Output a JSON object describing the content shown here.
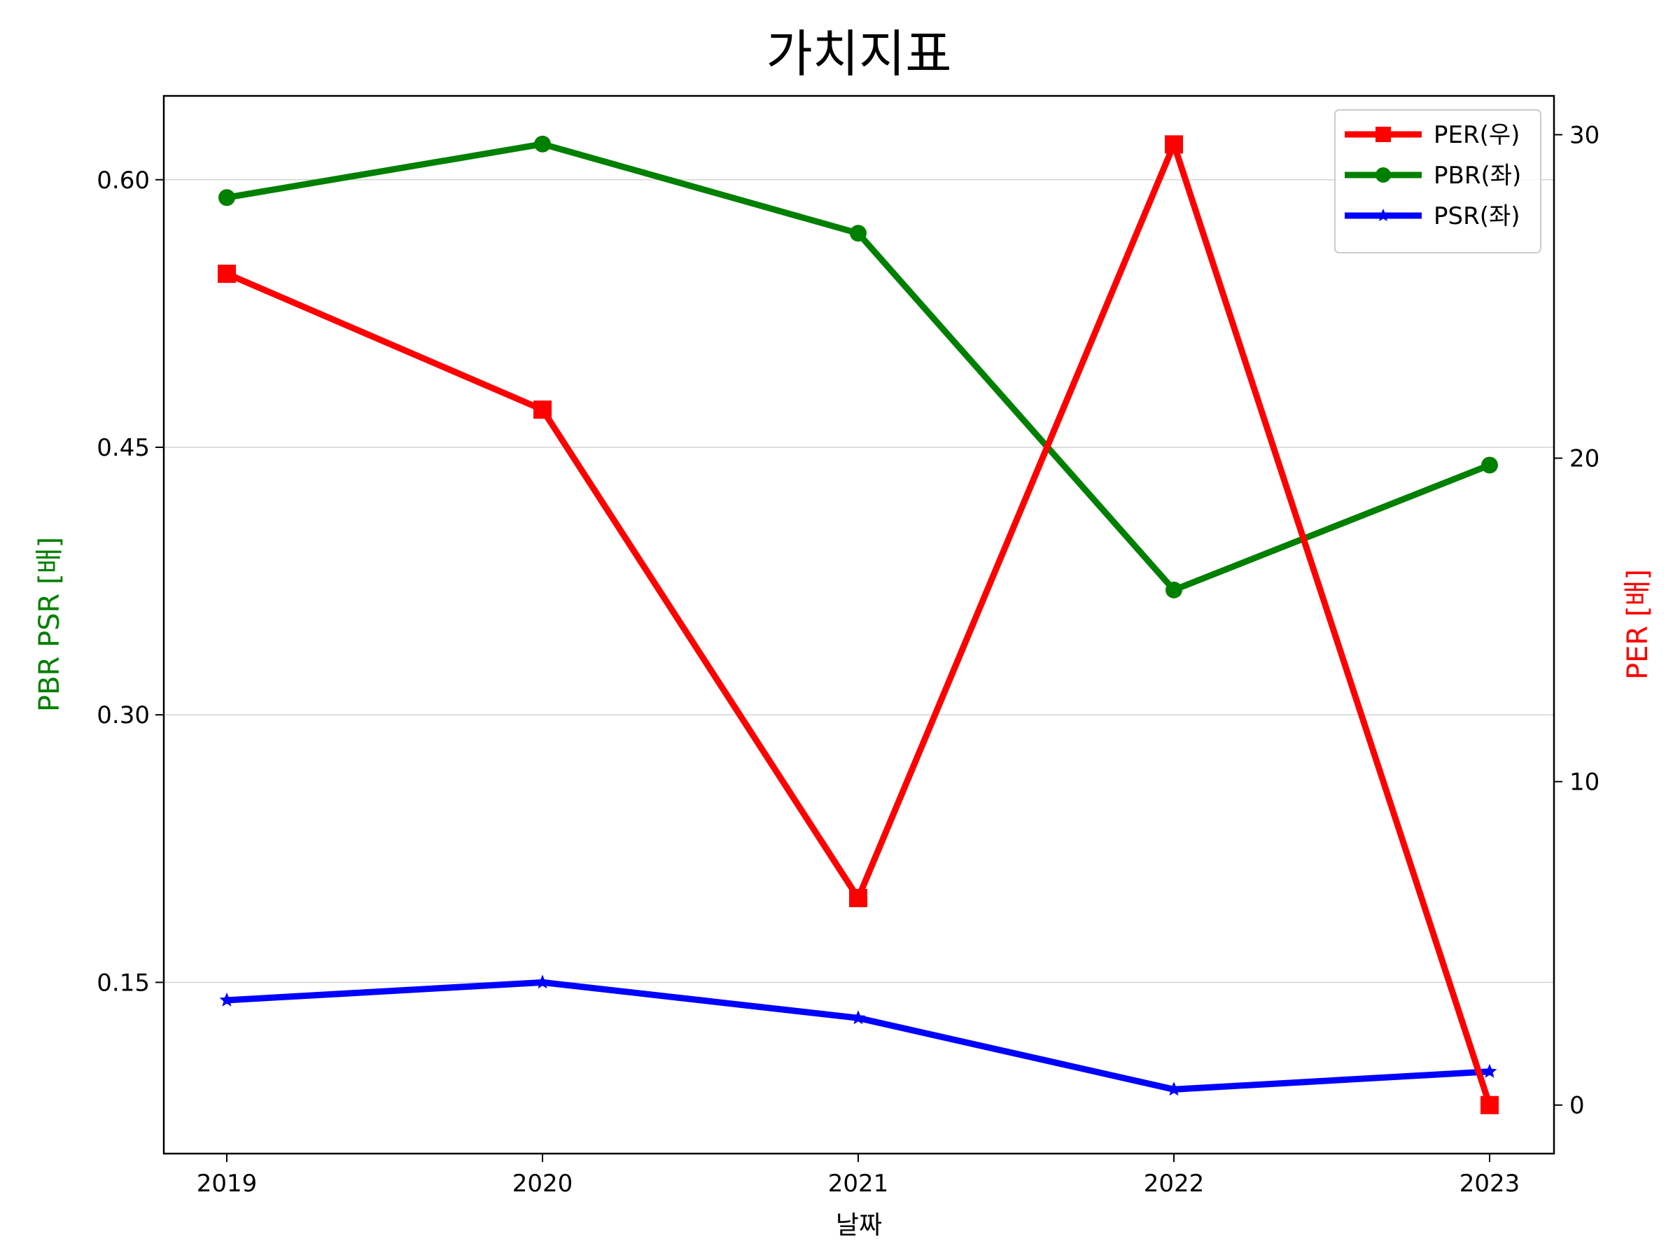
{
  "chart_data": {
    "type": "line",
    "title": "가치지표",
    "xlabel": "날짜",
    "ylabel_left": "PBR PSR [배]",
    "ylabel_right": "PER [배]",
    "colors": {
      "left_axis_label": "#008000",
      "right_axis_label": "#ff0000",
      "grid": "#d3d3d3"
    },
    "categories": [
      "2019",
      "2020",
      "2021",
      "2022",
      "2023"
    ],
    "left_axis": {
      "range": [
        0.054,
        0.647
      ],
      "ticks": [
        0.15,
        0.3,
        0.45,
        0.6
      ],
      "tick_labels": [
        "0.15",
        "0.30",
        "0.45",
        "0.60"
      ],
      "grid": true
    },
    "right_axis": {
      "range": [
        -1.5,
        31.2
      ],
      "ticks": [
        0,
        10,
        20,
        30
      ],
      "tick_labels": [
        "0",
        "10",
        "20",
        "30"
      ]
    },
    "series": [
      {
        "name": "PER(우)",
        "axis": "right",
        "color": "#ff0000",
        "marker": "square",
        "values": [
          25.7,
          21.5,
          6.4,
          29.7,
          0.0
        ]
      },
      {
        "name": "PBR(좌)",
        "axis": "left",
        "color": "#008000",
        "marker": "circle",
        "values": [
          0.59,
          0.62,
          0.57,
          0.37,
          0.44
        ]
      },
      {
        "name": "PSR(좌)",
        "axis": "left",
        "color": "#0000ff",
        "marker": "star",
        "values": [
          0.14,
          0.15,
          0.13,
          0.09,
          0.1
        ]
      }
    ],
    "legend_position": "top-right"
  }
}
